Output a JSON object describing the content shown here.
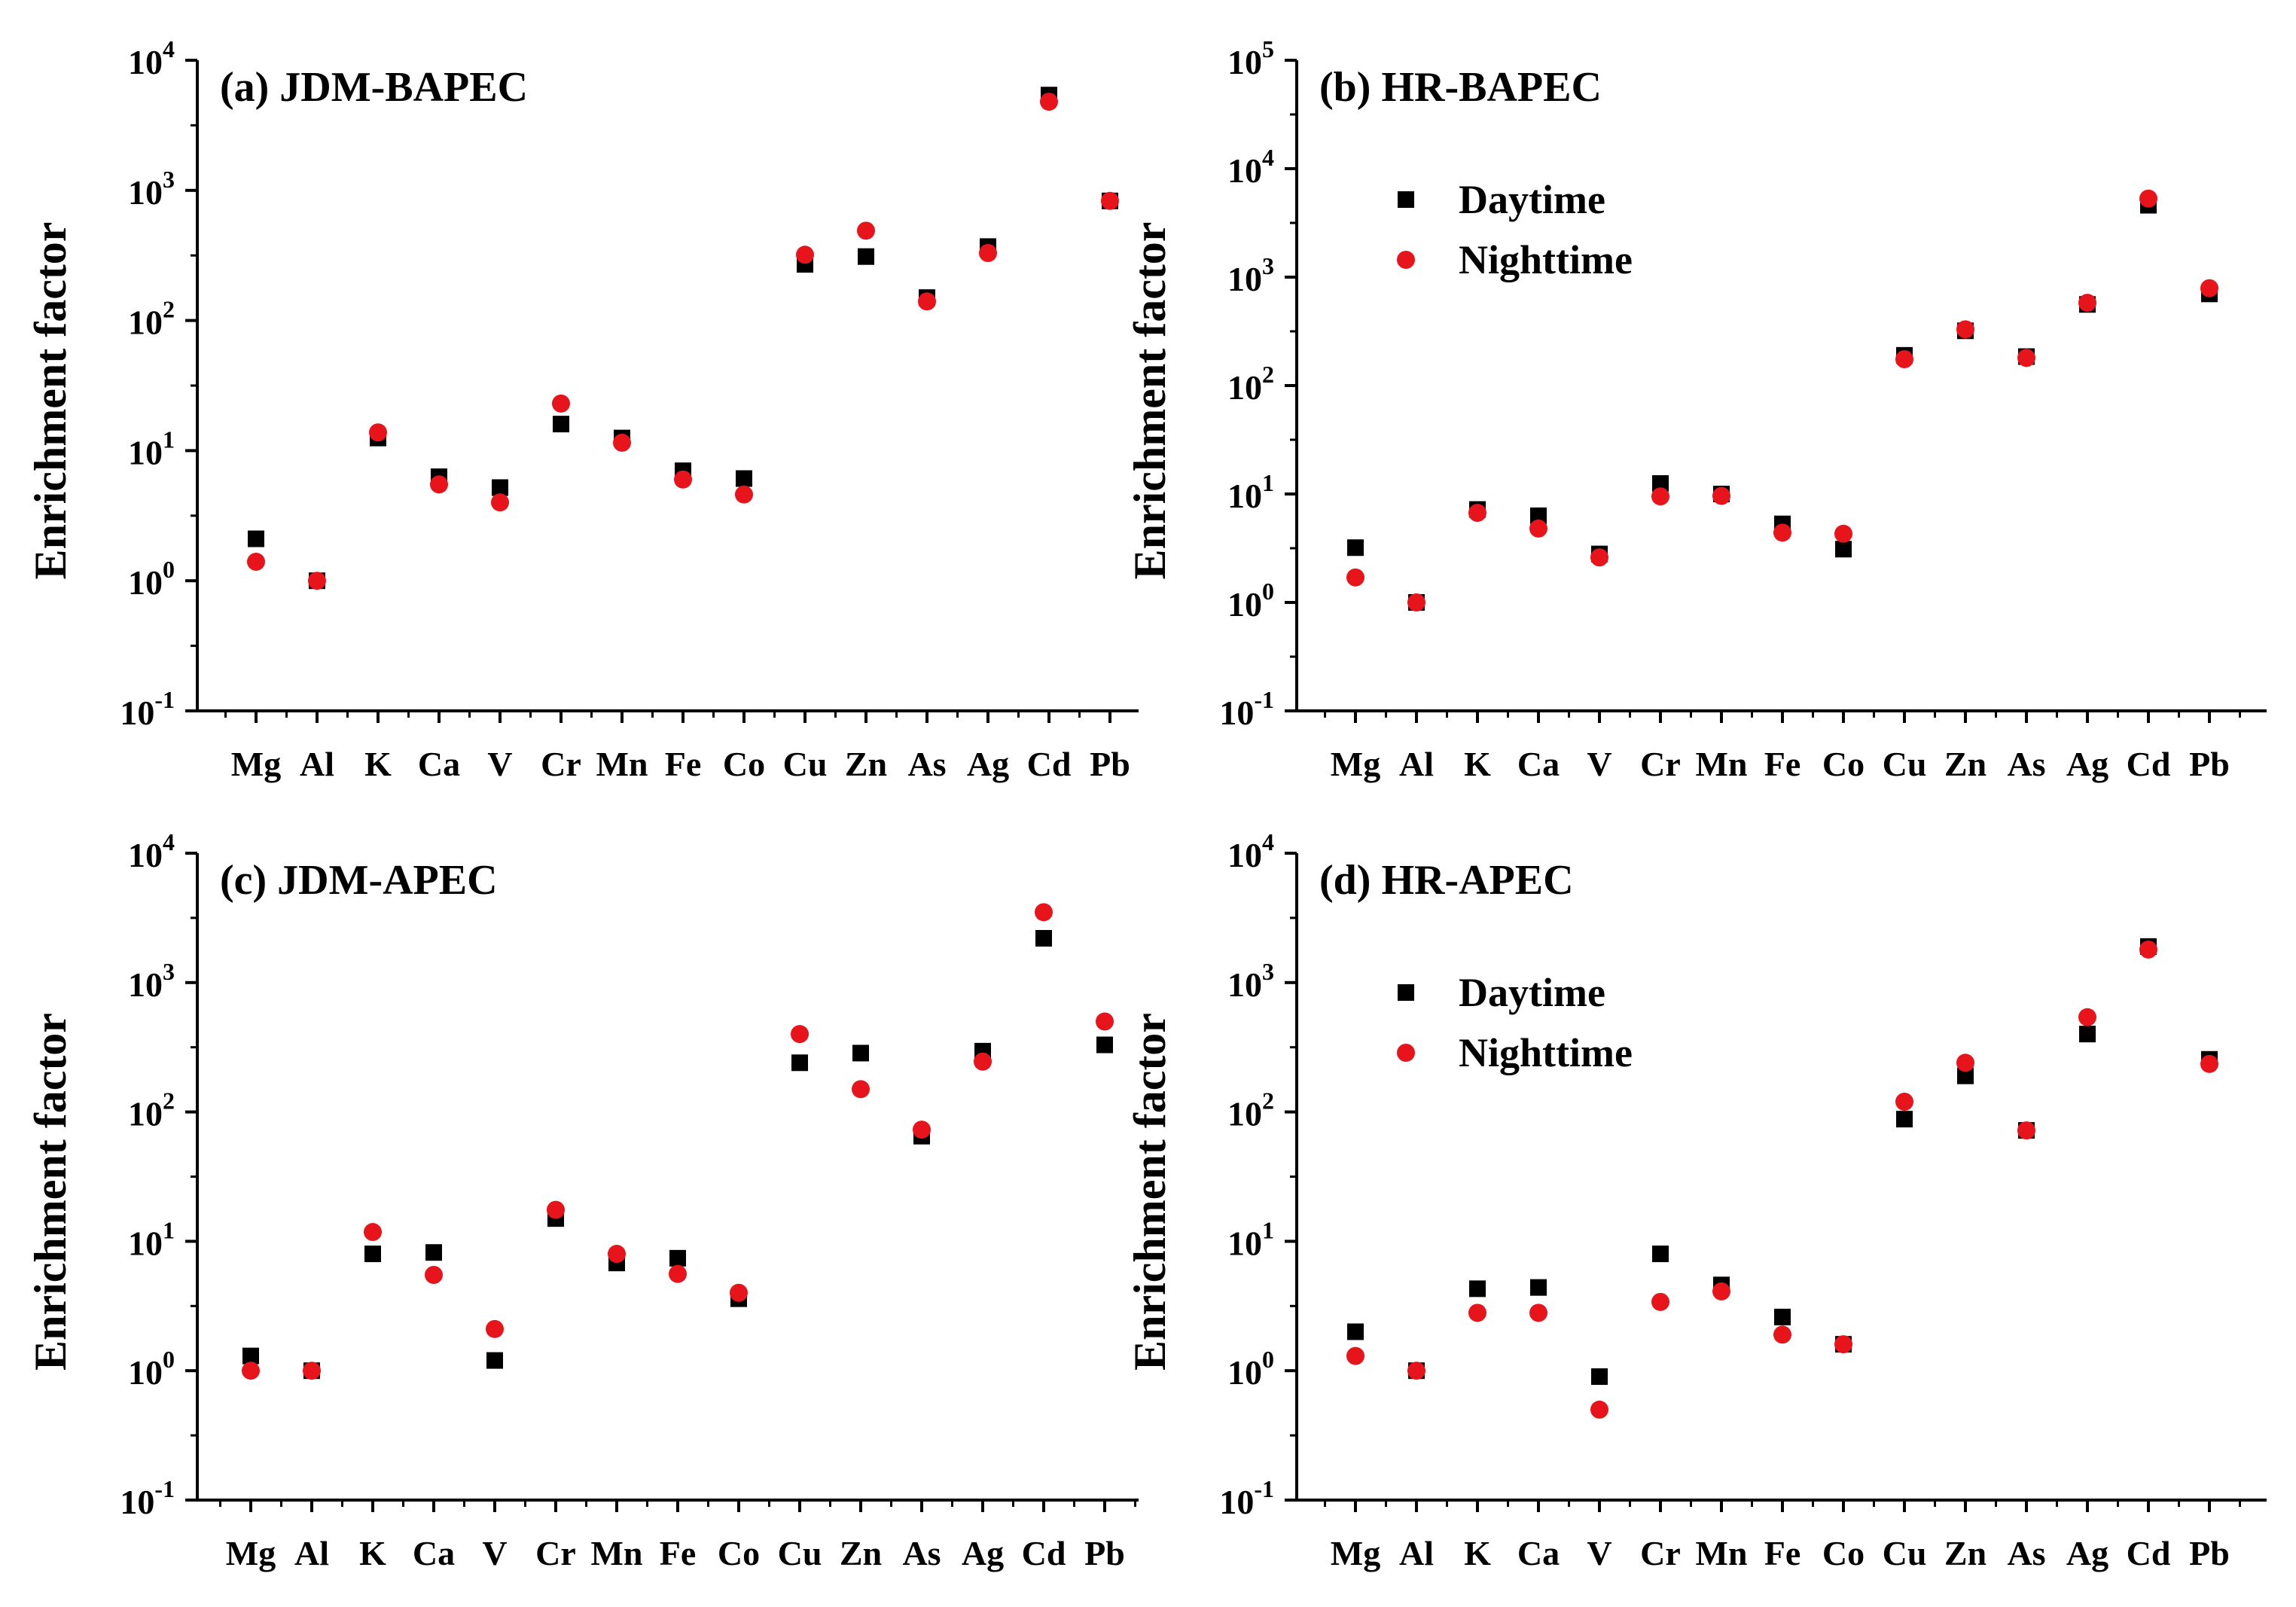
{
  "figure": {
    "categories": [
      "Mg",
      "Al",
      "K",
      "Ca",
      "V",
      "Cr",
      "Mn",
      "Fe",
      "Co",
      "Cu",
      "Zn",
      "As",
      "Ag",
      "Cd",
      "Pb"
    ],
    "series_colors": {
      "Daytime": "#000000",
      "Nighttime": "#e8141b"
    },
    "series_markers": {
      "Daytime": "square",
      "Nighttime": "circle"
    }
  },
  "chart_data": [
    {
      "id": "a",
      "type": "scatter",
      "title": "(a) JDM-BAPEC",
      "xlabel": "",
      "ylabel": "Enrichment factor",
      "yscale": "log",
      "ylim_exponents": [
        -1,
        4
      ],
      "ytick_labels": [
        {
          "base": "10",
          "exp": "4"
        },
        {
          "base": "10",
          "exp": "3"
        },
        {
          "base": "10",
          "exp": "2"
        },
        {
          "base": "10",
          "exp": "1"
        },
        {
          "base": "10",
          "exp": "0"
        },
        {
          "base": "10",
          "exp": "-1"
        }
      ],
      "categories": [
        "Mg",
        "Al",
        "K",
        "Ca",
        "V",
        "Cr",
        "Mn",
        "Fe",
        "Co",
        "Cu",
        "Zn",
        "As",
        "Ag",
        "Cd",
        "Pb"
      ],
      "legend": null,
      "series": [
        {
          "name": "Daytime",
          "values": [
            2.1,
            1.0,
            12.5,
            6.3,
            5.2,
            16,
            12.5,
            7.0,
            6.1,
            270,
            310,
            150,
            370,
            5400,
            830
          ]
        },
        {
          "name": "Nighttime",
          "values": [
            1.4,
            1.0,
            13.8,
            5.5,
            4.0,
            23,
            11.5,
            6.0,
            4.6,
            320,
            490,
            140,
            330,
            4800,
            830
          ]
        }
      ]
    },
    {
      "id": "b",
      "type": "scatter",
      "title": "(b) HR-BAPEC",
      "xlabel": "",
      "ylabel": "Enrichment factor",
      "yscale": "log",
      "ylim_exponents": [
        -1,
        5
      ],
      "ytick_labels": [
        {
          "base": "10",
          "exp": "5"
        },
        {
          "base": "10",
          "exp": "4"
        },
        {
          "base": "10",
          "exp": "3"
        },
        {
          "base": "10",
          "exp": "2"
        },
        {
          "base": "10",
          "exp": "1"
        },
        {
          "base": "10",
          "exp": "0"
        },
        {
          "base": "10",
          "exp": "-1"
        }
      ],
      "categories": [
        "Mg",
        "Al",
        "K",
        "Ca",
        "V",
        "Cr",
        "Mn",
        "Fe",
        "Co",
        "Cu",
        "Zn",
        "As",
        "Ag",
        "Cd",
        "Pb"
      ],
      "legend": {
        "entries": [
          "Daytime",
          "Nighttime"
        ],
        "position": "upper-left"
      },
      "series": [
        {
          "name": "Daytime",
          "values": [
            3.2,
            1.0,
            7.2,
            6.3,
            2.8,
            12.5,
            10.0,
            5.3,
            3.1,
            190,
            320,
            185,
            560,
            4600,
            700
          ]
        },
        {
          "name": "Nighttime",
          "values": [
            1.7,
            1.0,
            6.7,
            4.8,
            2.6,
            9.5,
            9.6,
            4.4,
            4.3,
            175,
            330,
            180,
            580,
            5300,
            790
          ]
        }
      ]
    },
    {
      "id": "c",
      "type": "scatter",
      "title": "(c) JDM-APEC",
      "xlabel": "",
      "ylabel": "Enrichment factor",
      "yscale": "log",
      "ylim_exponents": [
        -1,
        4
      ],
      "ytick_labels": [
        {
          "base": "10",
          "exp": "4"
        },
        {
          "base": "10",
          "exp": "3"
        },
        {
          "base": "10",
          "exp": "2"
        },
        {
          "base": "10",
          "exp": "1"
        },
        {
          "base": "10",
          "exp": "0"
        },
        {
          "base": "10",
          "exp": "-1"
        }
      ],
      "categories": [
        "Mg",
        "Al",
        "K",
        "Ca",
        "V",
        "Cr",
        "Mn",
        "Fe",
        "Co",
        "Cu",
        "Zn",
        "As",
        "Ag",
        "Cd",
        "Pb"
      ],
      "legend": null,
      "series": [
        {
          "name": "Daytime",
          "values": [
            1.3,
            1.0,
            8.0,
            8.2,
            1.2,
            15,
            6.8,
            7.4,
            3.6,
            240,
            285,
            65,
            295,
            2200,
            330
          ]
        },
        {
          "name": "Nighttime",
          "values": [
            1.0,
            1.0,
            11.8,
            5.5,
            2.1,
            17.5,
            8.0,
            5.6,
            4.0,
            400,
            150,
            73,
            245,
            3500,
            500
          ]
        }
      ]
    },
    {
      "id": "d",
      "type": "scatter",
      "title": "(d) HR-APEC",
      "xlabel": "",
      "ylabel": "Enrichment factor",
      "yscale": "log",
      "ylim_exponents": [
        -1,
        4
      ],
      "ytick_labels": [
        {
          "base": "10",
          "exp": "4"
        },
        {
          "base": "10",
          "exp": "3"
        },
        {
          "base": "10",
          "exp": "2"
        },
        {
          "base": "10",
          "exp": "1"
        },
        {
          "base": "10",
          "exp": "0"
        },
        {
          "base": "10",
          "exp": "-1"
        }
      ],
      "categories": [
        "Mg",
        "Al",
        "K",
        "Ca",
        "V",
        "Cr",
        "Mn",
        "Fe",
        "Co",
        "Cu",
        "Zn",
        "As",
        "Ag",
        "Cd",
        "Pb"
      ],
      "legend": {
        "entries": [
          "Daytime",
          "Nighttime"
        ],
        "position": "upper-left"
      },
      "series": [
        {
          "name": "Daytime",
          "values": [
            2.0,
            1.0,
            4.3,
            4.4,
            0.9,
            8.0,
            4.6,
            2.6,
            1.6,
            88,
            190,
            72,
            400,
            1900,
            255
          ]
        },
        {
          "name": "Nighttime",
          "values": [
            1.3,
            1.0,
            2.8,
            2.8,
            0.5,
            3.4,
            4.1,
            1.9,
            1.6,
            120,
            240,
            72,
            540,
            1800,
            235
          ]
        }
      ]
    }
  ]
}
